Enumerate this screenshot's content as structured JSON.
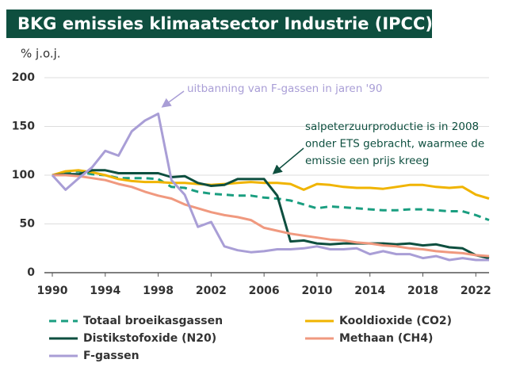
{
  "chart_data": {
    "type": "line",
    "title": "BKG emissies klimaatsector Industrie (IPCC)",
    "y_label": "% j.o.j.",
    "x": [
      1990,
      1991,
      1992,
      1993,
      1994,
      1995,
      1996,
      1997,
      1998,
      1999,
      2000,
      2001,
      2002,
      2003,
      2004,
      2005,
      2006,
      2007,
      2008,
      2009,
      2010,
      2011,
      2012,
      2013,
      2014,
      2015,
      2016,
      2017,
      2018,
      2019,
      2020,
      2021,
      2022,
      2023
    ],
    "xlim": [
      1990,
      2023
    ],
    "xticks": [
      1990,
      1994,
      1998,
      2002,
      2006,
      2010,
      2014,
      2018,
      2022
    ],
    "ylim": [
      0,
      200
    ],
    "yticks": [
      0,
      50,
      100,
      150,
      200
    ],
    "grid": true,
    "legend": "bottom",
    "series": [
      {
        "name": "Totaal broeikasgassen",
        "color": "#1a9e80",
        "dashed": true,
        "values": [
          100,
          103,
          104,
          101,
          100,
          97,
          97,
          97,
          96,
          88,
          87,
          83,
          81,
          80,
          79,
          79,
          77,
          76,
          74,
          70,
          66,
          68,
          67,
          66,
          65,
          64,
          64,
          65,
          65,
          64,
          63,
          63,
          59,
          54
        ]
      },
      {
        "name": "Kooldioxide (CO2)",
        "color": "#f0b400",
        "dashed": false,
        "values": [
          100,
          104,
          105,
          103,
          100,
          96,
          94,
          93,
          93,
          92,
          92,
          91,
          90,
          91,
          92,
          93,
          92,
          92,
          91,
          85,
          91,
          90,
          88,
          87,
          87,
          86,
          88,
          90,
          90,
          88,
          87,
          88,
          80,
          76
        ]
      },
      {
        "name": "Distikstofoxide (N20)",
        "color": "#0e4f3f",
        "dashed": false,
        "values": [
          100,
          101,
          101,
          105,
          105,
          102,
          102,
          102,
          102,
          98,
          99,
          92,
          89,
          90,
          96,
          96,
          96,
          79,
          32,
          33,
          30,
          29,
          30,
          30,
          30,
          30,
          29,
          30,
          28,
          29,
          26,
          25,
          18,
          15
        ]
      },
      {
        "name": "Methaan (CH4)",
        "color": "#f0997f",
        "dashed": false,
        "values": [
          100,
          100,
          99,
          97,
          95,
          91,
          88,
          83,
          79,
          76,
          70,
          66,
          62,
          59,
          57,
          54,
          46,
          43,
          40,
          38,
          36,
          34,
          33,
          31,
          30,
          28,
          27,
          25,
          24,
          22,
          21,
          20,
          18,
          17
        ]
      },
      {
        "name": "F-gassen",
        "color": "#a99ed6",
        "dashed": false,
        "values": [
          100,
          85,
          97,
          108,
          125,
          120,
          145,
          156,
          163,
          95,
          80,
          47,
          52,
          27,
          23,
          21,
          22,
          24,
          24,
          25,
          27,
          24,
          24,
          25,
          19,
          22,
          19,
          19,
          15,
          17,
          13,
          15,
          13,
          13
        ]
      }
    ],
    "annotations": [
      {
        "lines": [
          "uitbanning van F-gassen in jaren '90"
        ],
        "color": "#a99ed6"
      },
      {
        "lines": [
          "salpeterzuurproductie is in 2008",
          "onder ETS gebracht, waarmee de",
          "emissie een prijs kreeg"
        ],
        "color": "#0e4f3f"
      }
    ]
  }
}
